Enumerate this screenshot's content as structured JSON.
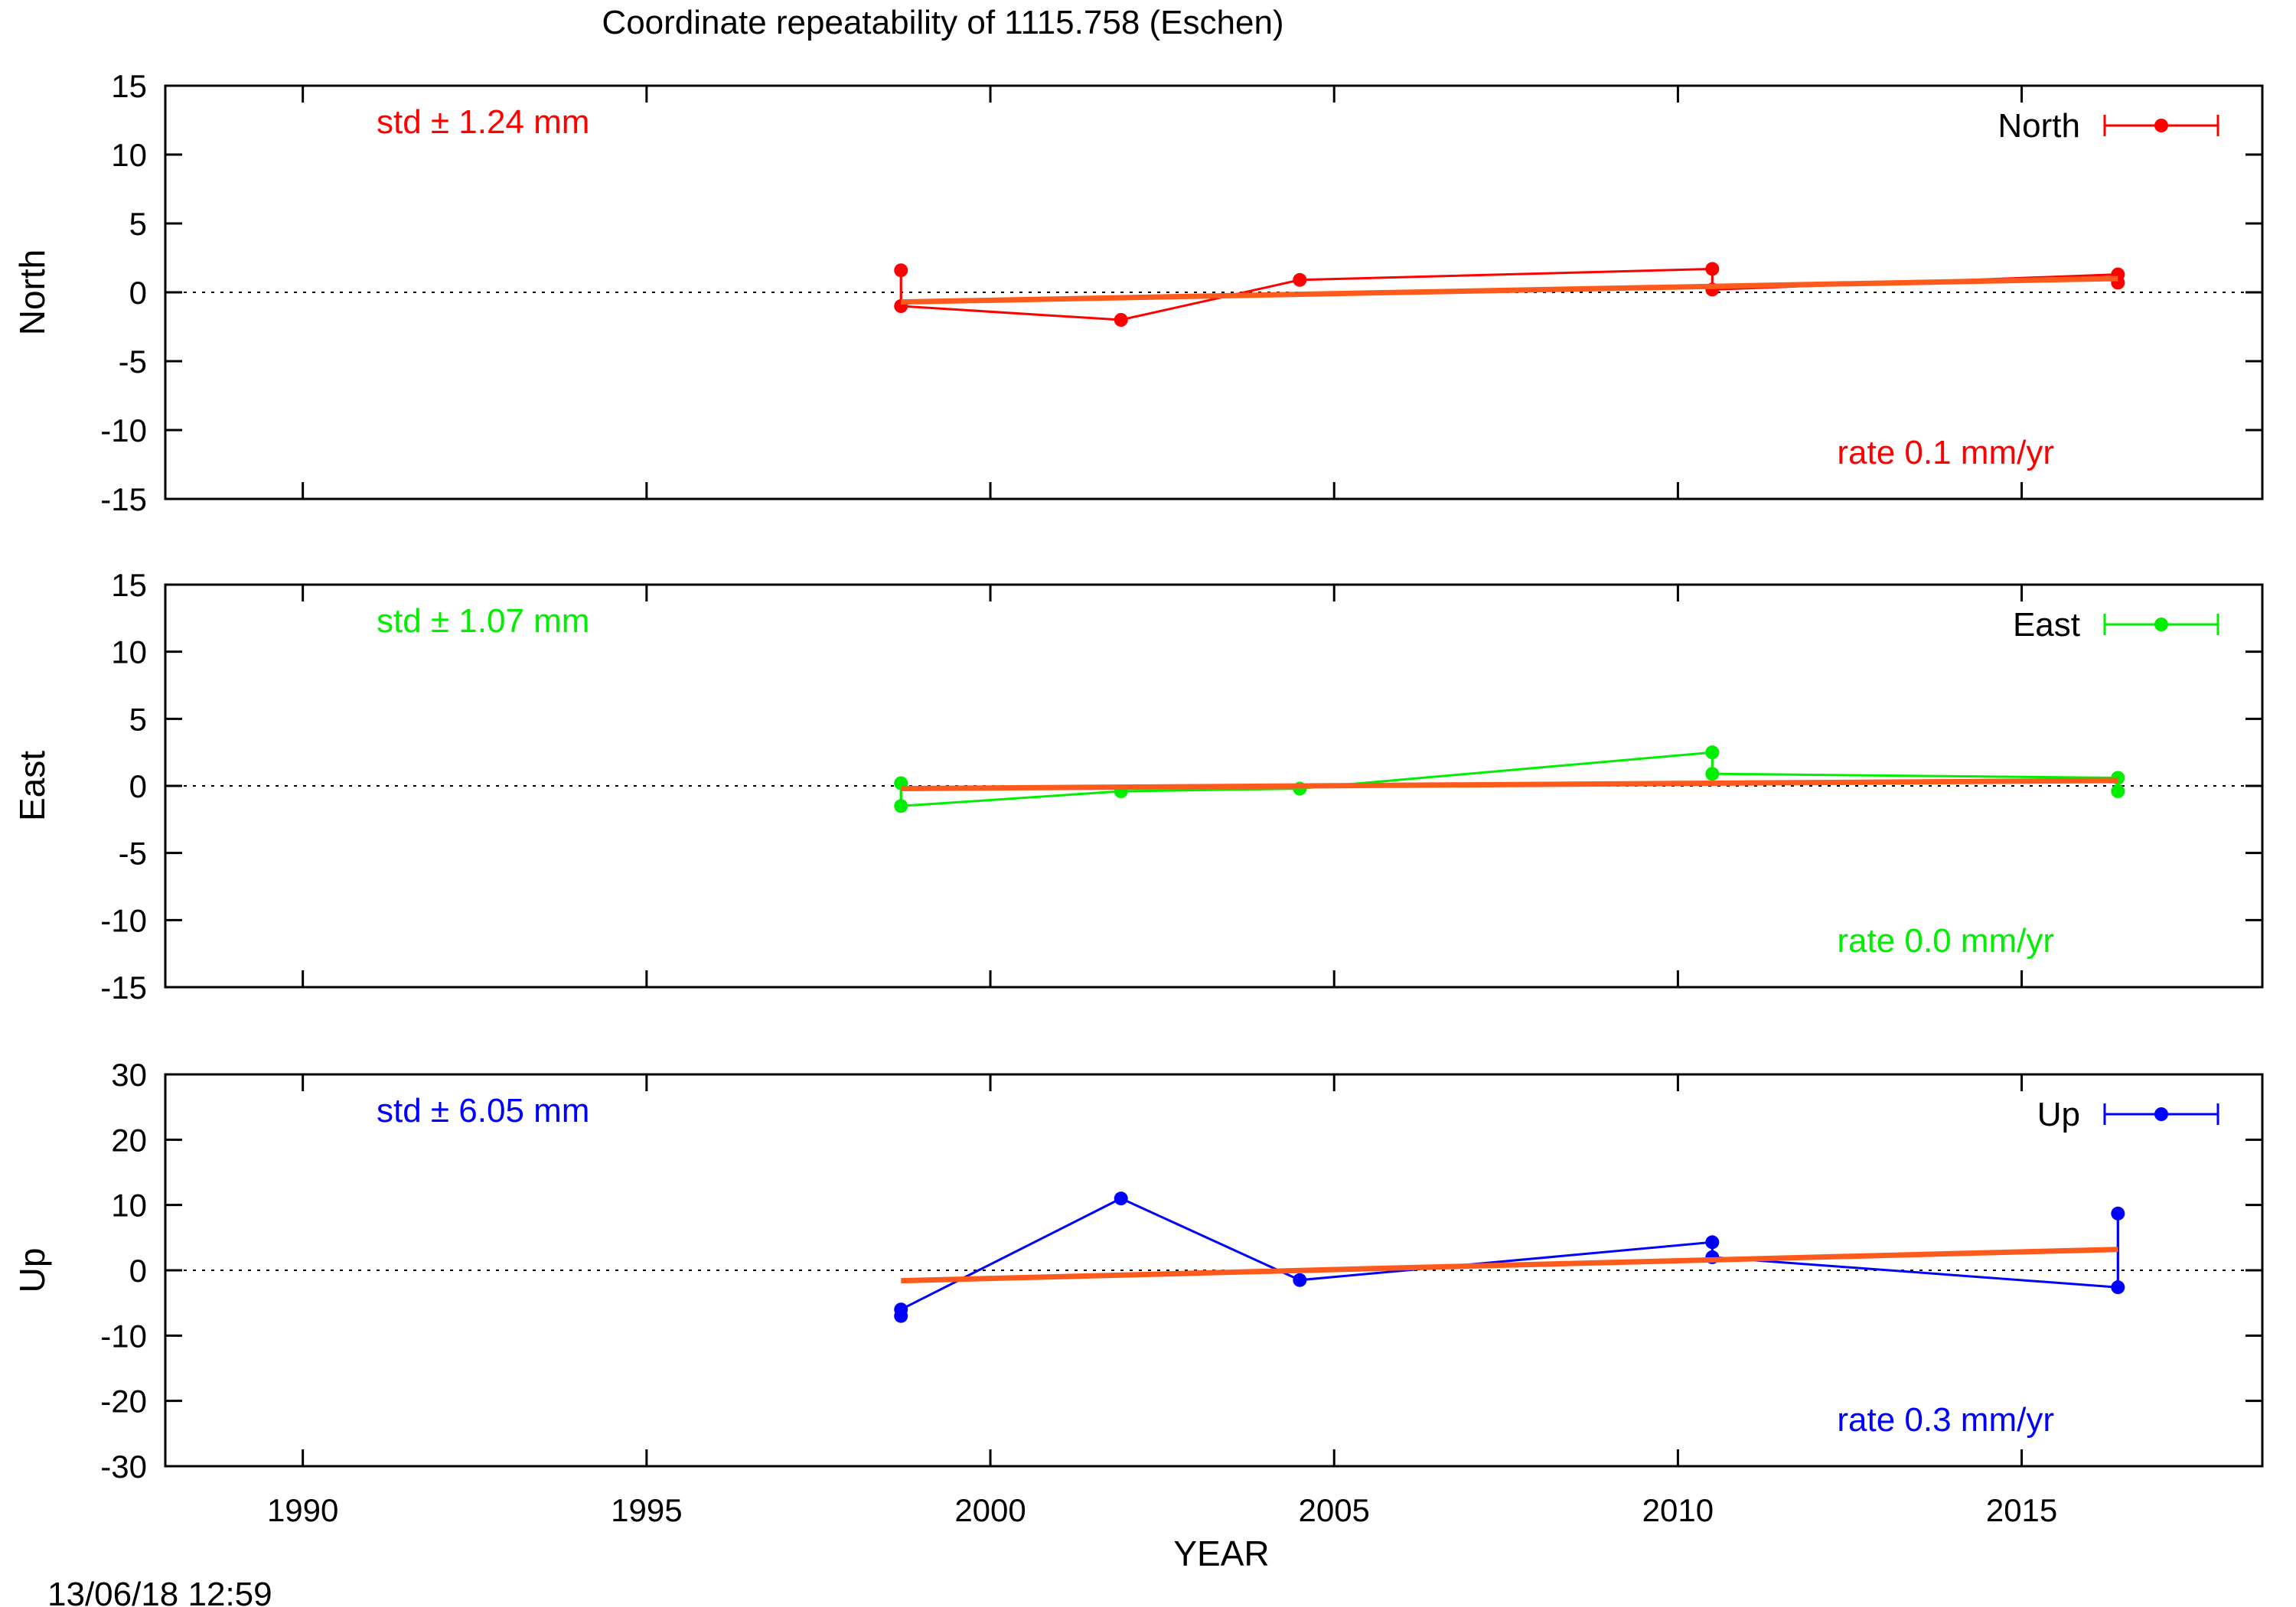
{
  "title": "Coordinate repeatability of 1115.758      (Eschen)",
  "timestamp": "13/06/18 12:59",
  "colors": {
    "north": "#ff0000",
    "east": "#00ee00",
    "up": "#0000ff",
    "trend": "#ff5a1e",
    "axis": "#000000"
  },
  "chart_data": [
    {
      "type": "line",
      "component": "north",
      "ylabel": "North",
      "xlabel": "",
      "xlim": [
        1988,
        2018.5
      ],
      "ylim": [
        -15,
        15
      ],
      "yticks": [
        15,
        10,
        5,
        0,
        -5,
        -10,
        -15
      ],
      "xticks": [
        1990,
        1995,
        2000,
        2005,
        2010,
        2015
      ],
      "show_xtick_labels": false,
      "legend": "top-right",
      "series": [
        {
          "name": "North",
          "x": [
            1998.7,
            1998.7,
            2001.9,
            2004.5,
            2010.5,
            2010.5,
            2016.4,
            2016.4
          ],
          "values": [
            1.6,
            -1.0,
            -2.0,
            0.9,
            1.7,
            0.2,
            1.3,
            0.7
          ]
        }
      ],
      "trend": {
        "x": [
          1998.7,
          2016.4
        ],
        "values": [
          -0.7,
          1.0
        ]
      },
      "std_label": "std ± 1.24 mm",
      "rate_label": "rate  0.1 mm/yr"
    },
    {
      "type": "line",
      "component": "east",
      "ylabel": "East",
      "xlabel": "",
      "xlim": [
        1988,
        2018.5
      ],
      "ylim": [
        -15,
        15
      ],
      "yticks": [
        15,
        10,
        5,
        0,
        -5,
        -10,
        -15
      ],
      "xticks": [
        1990,
        1995,
        2000,
        2005,
        2010,
        2015
      ],
      "show_xtick_labels": false,
      "legend": "top-right",
      "series": [
        {
          "name": "East",
          "x": [
            1998.7,
            1998.7,
            2001.9,
            2004.5,
            2010.5,
            2010.5,
            2016.4,
            2016.4
          ],
          "values": [
            0.2,
            -1.5,
            -0.4,
            -0.2,
            2.5,
            0.9,
            0.6,
            -0.4
          ]
        }
      ],
      "trend": {
        "x": [
          1998.7,
          2016.4
        ],
        "values": [
          -0.2,
          0.4
        ]
      },
      "std_label": "std ± 1.07 mm",
      "rate_label": "rate  0.0 mm/yr"
    },
    {
      "type": "line",
      "component": "up",
      "ylabel": "Up",
      "xlabel": "YEAR",
      "xlim": [
        1988,
        2018.5
      ],
      "ylim": [
        -30,
        30
      ],
      "yticks": [
        30,
        20,
        10,
        0,
        -10,
        -20,
        -30
      ],
      "xticks": [
        1990,
        1995,
        2000,
        2005,
        2010,
        2015
      ],
      "show_xtick_labels": true,
      "legend": "top-right",
      "series": [
        {
          "name": "Up",
          "x": [
            1998.7,
            1998.7,
            2001.9,
            2004.5,
            2010.5,
            2010.5,
            2016.4,
            2016.4
          ],
          "values": [
            -7.0,
            -6.0,
            11.0,
            -1.5,
            4.3,
            2.0,
            -2.6,
            8.7
          ]
        }
      ],
      "trend": {
        "x": [
          1998.7,
          2016.4
        ],
        "values": [
          -1.6,
          3.2
        ]
      },
      "std_label": "std ± 6.05 mm",
      "rate_label": "rate  0.3 mm/yr"
    }
  ]
}
